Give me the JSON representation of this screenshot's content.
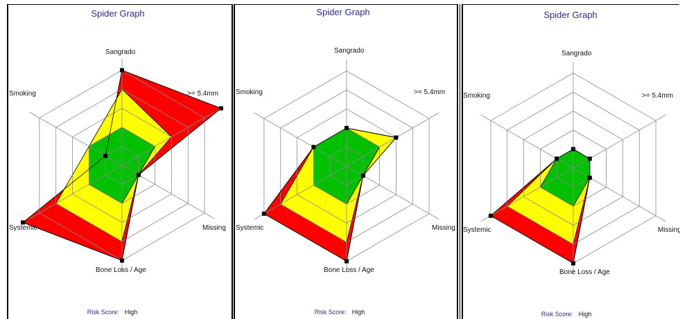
{
  "chart_data": [
    {
      "type": "radar",
      "title": "Spider Graph",
      "axes": [
        "Sangrado",
        ">= 5.4mm",
        "Missing",
        "Bone Loss / Age",
        "Systemic",
        "Smoking"
      ],
      "rings": 5,
      "bands": [
        {
          "name": "green",
          "color": "#00c000",
          "values": [
            2,
            2,
            1,
            2,
            2,
            2
          ]
        },
        {
          "name": "yellow",
          "color": "#ffff00",
          "values": [
            4,
            3,
            1,
            4,
            4,
            2
          ]
        },
        {
          "name": "red",
          "color": "#ff0000",
          "values": [
            5,
            6,
            1,
            5,
            6,
            1
          ]
        }
      ],
      "markers": [
        5,
        6,
        1,
        5,
        6,
        1
      ],
      "risk_label": "Risk Score:",
      "risk_value": "High"
    },
    {
      "type": "radar",
      "title": "Spider Graph",
      "axes": [
        "Sangrado",
        ">= 5.4mm",
        "Missing",
        "Bone Loss / Age",
        "Systemic",
        "Smoking"
      ],
      "rings": 5,
      "bands": [
        {
          "name": "green",
          "color": "#00c000",
          "values": [
            2,
            2,
            1,
            2,
            2,
            2
          ]
        },
        {
          "name": "yellow",
          "color": "#ffff00",
          "values": [
            2,
            3,
            1,
            4,
            4,
            2
          ]
        },
        {
          "name": "red",
          "color": "#ff0000",
          "values": [
            2,
            3,
            1,
            5,
            5,
            2
          ]
        }
      ],
      "markers": [
        2,
        3,
        1,
        5,
        5,
        2
      ],
      "risk_label": "Risk Score:",
      "risk_value": "High"
    },
    {
      "type": "radar",
      "title": "Spider Graph",
      "axes": [
        "Sangrado",
        ">= 5.4mm",
        "Missing",
        "Bone Loss / Age",
        "Systemic",
        "Smoking"
      ],
      "rings": 5,
      "bands": [
        {
          "name": "green",
          "color": "#00c000",
          "values": [
            1,
            1,
            1,
            2,
            2,
            1
          ]
        },
        {
          "name": "yellow",
          "color": "#ffff00",
          "values": [
            1,
            1,
            1,
            4,
            4,
            1
          ]
        },
        {
          "name": "red",
          "color": "#ff0000",
          "values": [
            1,
            1,
            1,
            5,
            5,
            1
          ]
        }
      ],
      "markers": [
        1,
        1,
        1,
        5,
        5,
        1
      ],
      "risk_label": "Risk Score:",
      "risk_value": "High"
    }
  ]
}
